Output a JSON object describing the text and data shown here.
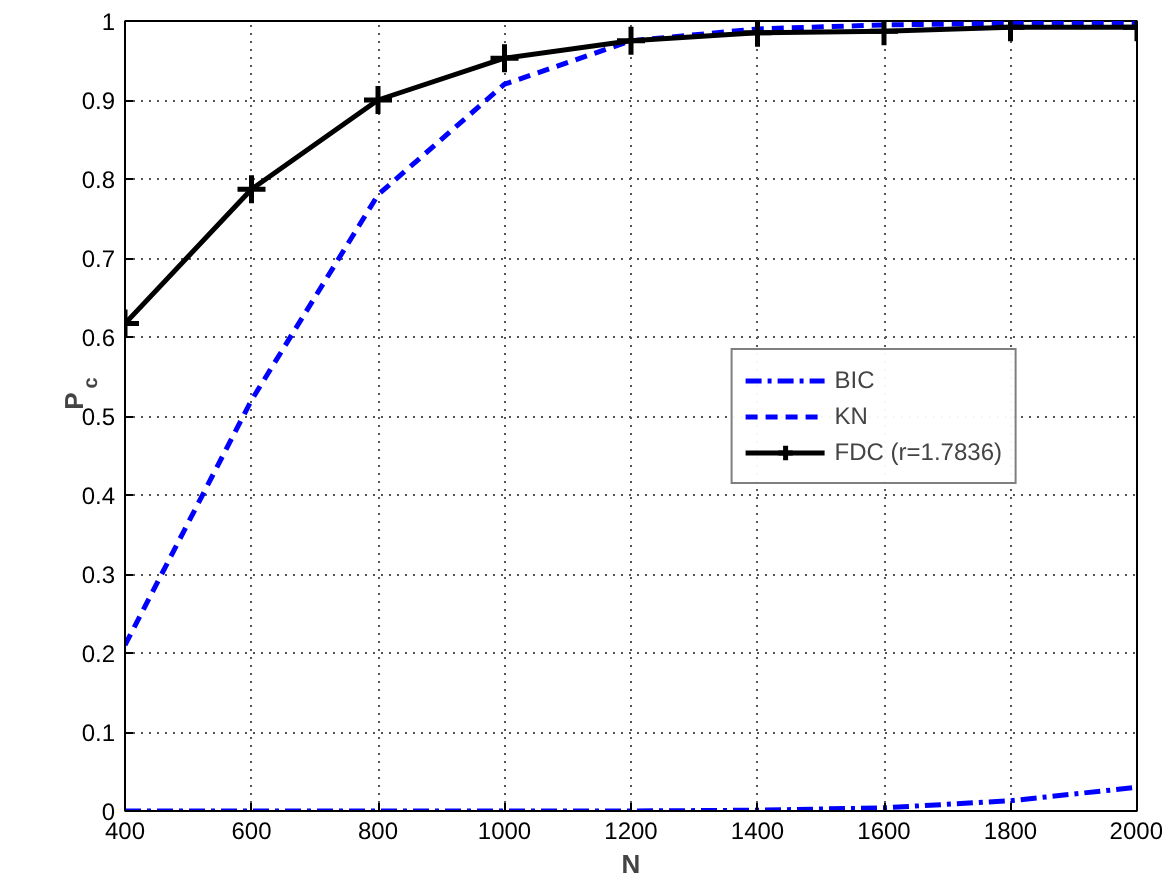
{
  "chart_data": {
    "type": "line",
    "xlabel": "N",
    "ylabel": "P$_{c}$",
    "x": [
      400,
      600,
      800,
      1000,
      1200,
      1400,
      1600,
      1800,
      2000
    ],
    "series": [
      {
        "name": "BIC",
        "color": "#0000ff",
        "line_style": "dashdot",
        "marker": "none",
        "values": [
          0,
          0,
          0,
          0,
          0,
          0.001,
          0.004,
          0.013,
          0.03
        ]
      },
      {
        "name": "KN",
        "color": "#0000ff",
        "line_style": "dashed",
        "marker": "none",
        "values": [
          0.21,
          0.52,
          0.78,
          0.92,
          0.975,
          0.99,
          0.995,
          0.997,
          0.998
        ]
      },
      {
        "name": "FDC (r=1.7836)",
        "color": "#000000",
        "line_style": "solid",
        "marker": "cross",
        "values": [
          0.617,
          0.787,
          0.9,
          0.953,
          0.975,
          0.985,
          0.987,
          0.992,
          0.992
        ]
      }
    ],
    "xlim": [
      400,
      2000
    ],
    "ylim": [
      0,
      1
    ],
    "xticks": [
      400,
      600,
      800,
      1000,
      1200,
      1400,
      1600,
      1800,
      2000
    ],
    "yticks": [
      0,
      0.1,
      0.2,
      0.3,
      0.4,
      0.5,
      0.6,
      0.7,
      0.8,
      0.9,
      1
    ],
    "grid": true,
    "legend": "right"
  }
}
